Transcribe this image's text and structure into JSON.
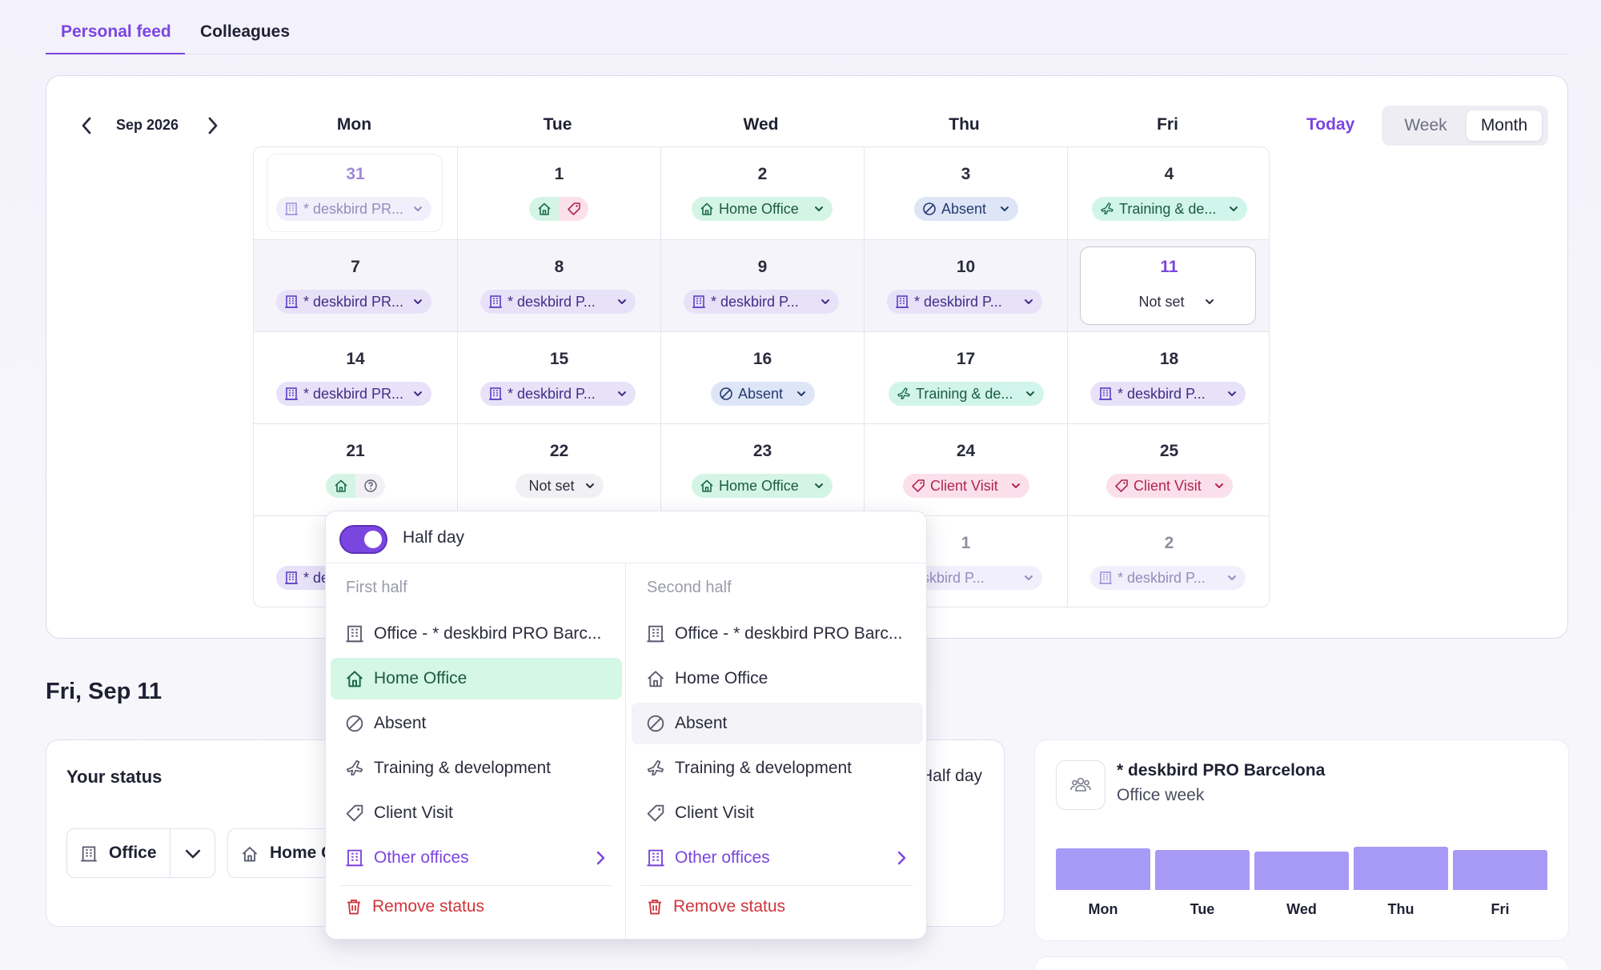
{
  "tabs": [
    {
      "label": "Personal feed",
      "active": true
    },
    {
      "label": "Colleagues",
      "active": false
    }
  ],
  "calendar": {
    "month_label": "Sep 2026",
    "day_headers": [
      "Mon",
      "Tue",
      "Wed",
      "Thu",
      "Fri"
    ],
    "today_label": "Today",
    "views": [
      "Week",
      "Month"
    ],
    "selected_view": "Month",
    "rows": [
      [
        {
          "date": "31",
          "chip": "* deskbird PR..."
        },
        {
          "date": "1",
          "chip": ""
        },
        {
          "date": "2",
          "chip": "Home Office"
        },
        {
          "date": "3",
          "chip": "Absent"
        },
        {
          "date": "4",
          "chip": "Training & de..."
        }
      ],
      [
        {
          "date": "7",
          "chip": "* deskbird PR..."
        },
        {
          "date": "8",
          "chip": "* deskbird P..."
        },
        {
          "date": "9",
          "chip": "* deskbird P..."
        },
        {
          "date": "10",
          "chip": "* deskbird P..."
        },
        {
          "date": "11",
          "chip": "Not set"
        }
      ],
      [
        {
          "date": "14",
          "chip": "* deskbird PR..."
        },
        {
          "date": "15",
          "chip": "* deskbird P..."
        },
        {
          "date": "16",
          "chip": "Absent"
        },
        {
          "date": "17",
          "chip": "Training & de..."
        },
        {
          "date": "18",
          "chip": "* deskbird P..."
        }
      ],
      [
        {
          "date": "21",
          "chip": ""
        },
        {
          "date": "22",
          "chip": "Not set"
        },
        {
          "date": "23",
          "chip": "Home Office"
        },
        {
          "date": "24",
          "chip": "Client Visit"
        },
        {
          "date": "25",
          "chip": "Client Visit"
        }
      ],
      [
        {
          "date": "",
          "chip": "* de"
        },
        {
          "date": "",
          "chip": ""
        },
        {
          "date": "",
          "chip": ""
        },
        {
          "date": "1",
          "chip": "eskbird P..."
        },
        {
          "date": "2",
          "chip": "* deskbird P..."
        }
      ]
    ]
  },
  "selected_date_heading": "Fri, Sep 11",
  "status": {
    "title": "Your status",
    "half_day_label": "Half day",
    "office_label": "Office",
    "home_label": "Home C"
  },
  "office_week": {
    "title": "* deskbird PRO Barcelona",
    "subtitle": "Office week",
    "days": [
      "Mon",
      "Tue",
      "Wed",
      "Thu",
      "Fri"
    ],
    "occupancy": [
      0.93,
      0.89,
      0.86,
      0.96,
      0.9
    ]
  },
  "popover": {
    "half_day_label": "Half day",
    "half_day_on": true,
    "first_half": {
      "heading": "First half",
      "selected": "Home Office",
      "options": [
        "Office - * deskbird PRO Barc...",
        "Home Office",
        "Absent",
        "Training & development",
        "Client Visit",
        "Other offices",
        "Remove status"
      ]
    },
    "second_half": {
      "heading": "Second half",
      "selected": "Absent",
      "options": [
        "Office - * deskbird PRO Barc...",
        "Home Office",
        "Absent",
        "Training & development",
        "Client Visit",
        "Other offices",
        "Remove status"
      ]
    }
  },
  "colors": {
    "accent": "#7b45e0",
    "office_chip": "#e7e2f8",
    "home_chip": "#d4f5e6",
    "absent_chip": "#dde5f7",
    "client_chip": "#fbe0ec",
    "remove": "#d0343c"
  }
}
